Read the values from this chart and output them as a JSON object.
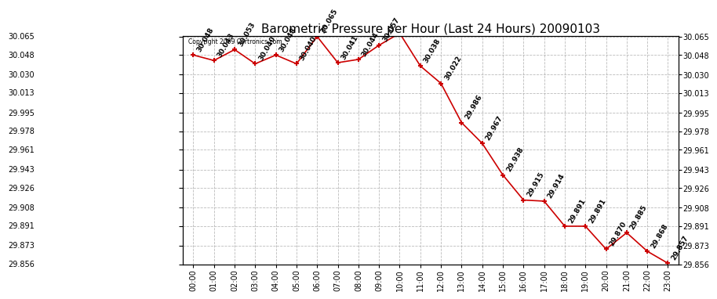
{
  "title": "Barometric Pressure per Hour (Last 24 Hours) 20090103",
  "copyright": "Copyright 2009 Cartronics.com",
  "hours": [
    "00:00",
    "01:00",
    "02:00",
    "03:00",
    "04:00",
    "05:00",
    "06:00",
    "07:00",
    "08:00",
    "09:00",
    "10:00",
    "11:00",
    "12:00",
    "13:00",
    "14:00",
    "15:00",
    "16:00",
    "17:00",
    "18:00",
    "19:00",
    "20:00",
    "21:00",
    "22:00",
    "23:00"
  ],
  "values": [
    30.048,
    30.043,
    30.053,
    30.04,
    30.048,
    30.04,
    30.065,
    30.041,
    30.044,
    30.057,
    30.068,
    30.038,
    30.022,
    29.986,
    29.967,
    29.938,
    29.915,
    29.914,
    29.891,
    29.891,
    29.87,
    29.885,
    29.868,
    29.857
  ],
  "line_color": "#cc0000",
  "marker_color": "#cc0000",
  "bg_color": "#ffffff",
  "plot_bg_color": "#ffffff",
  "grid_color": "#aaaaaa",
  "ylim_min": 29.856,
  "ylim_max": 30.065,
  "yticks": [
    29.856,
    29.873,
    29.891,
    29.908,
    29.926,
    29.943,
    29.961,
    29.978,
    29.995,
    30.013,
    30.03,
    30.048,
    30.065
  ],
  "title_fontsize": 11,
  "tick_fontsize": 7,
  "annotation_fontsize": 6.5,
  "copyright_fontsize": 5.5
}
